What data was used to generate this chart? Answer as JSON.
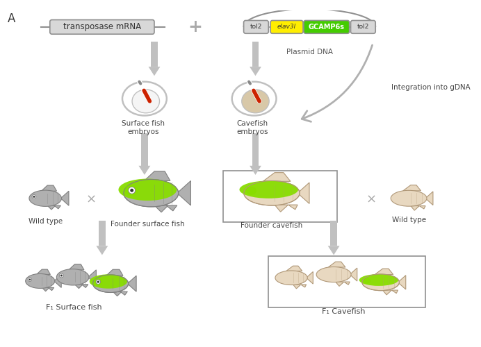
{
  "bg_color": "#ffffff",
  "fish_gray": "#b0b0b0",
  "fish_cave": "#e8d8c0",
  "fish_edge_gray": "#808080",
  "fish_edge_cave": "#b09878",
  "arrow_gray": "#c0c0c0",
  "green_bright": "#88dd00",
  "yellow_bright": "#ffee00",
  "green_gcamp": "#44cc00",
  "box_gray": "#d0d0d0",
  "text_dark": "#444444",
  "text_mid": "#666666",
  "mrna_label": "transposase mRNA",
  "plasmid_label": "Plasmid DNA",
  "tol2_label": "tol2",
  "elav_label": "elav3l",
  "gcamp_label": "GCAMP6s",
  "sf_embryo_label": "Surface fish\nembryos",
  "cf_embryo_label": "Cavefish\nembryos",
  "integration_label": "Integration into gDNA",
  "wt1_label": "Wild type",
  "founder_sf_label": "Founder surface fish",
  "founder_cf_label": "Founder cavefish",
  "wt2_label": "Wild type",
  "f1_sf_label": "F₁ Surface fish",
  "f1_cf_label": "F₁ Cavefish"
}
